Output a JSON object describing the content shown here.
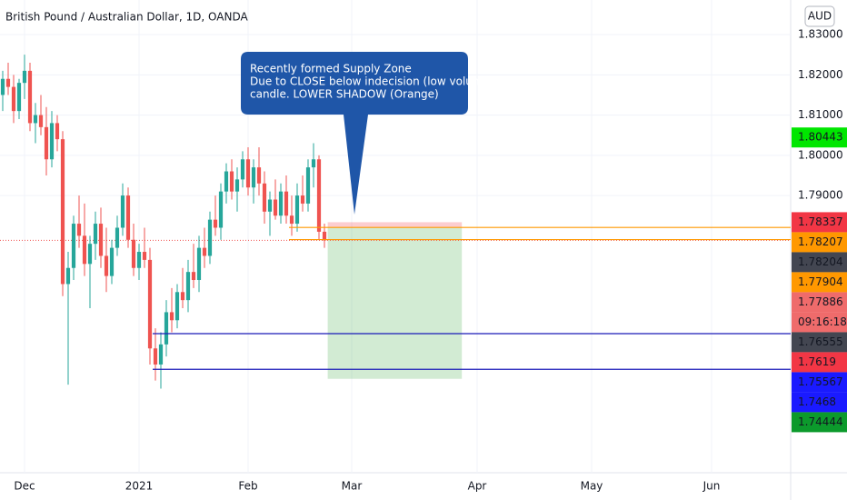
{
  "chart_data": {
    "type": "candlestick",
    "title": "British Pound / Australian Dollar, 1D, OANDA",
    "currency": "AUD",
    "up_color": "#26a69a",
    "down_color": "#ef5350",
    "ylim": [
      1.7211,
      1.8386
    ],
    "yticks": [
      {
        "value": 1.83,
        "label": "1.83000"
      },
      {
        "value": 1.82,
        "label": "1.82000"
      },
      {
        "value": 1.81,
        "label": "1.81000"
      },
      {
        "value": 1.8,
        "label": "1.80000"
      },
      {
        "value": 1.79,
        "label": "1.79000"
      }
    ],
    "xlim": [
      -0.5,
      144.5
    ],
    "xticks": [
      {
        "value": 4,
        "label": "Dec"
      },
      {
        "value": 25,
        "label": "2021"
      },
      {
        "value": 45,
        "label": "Feb"
      },
      {
        "value": 64,
        "label": "Mar"
      },
      {
        "value": 87,
        "label": "Apr"
      },
      {
        "value": 108,
        "label": "May"
      },
      {
        "value": 130,
        "label": "Jun"
      }
    ],
    "grid": true,
    "ohlc": [
      [
        1.815,
        1.821,
        1.811,
        1.819
      ],
      [
        1.819,
        1.823,
        1.815,
        1.817
      ],
      [
        1.817,
        1.82,
        1.808,
        1.811
      ],
      [
        1.811,
        1.819,
        1.809,
        1.818
      ],
      [
        1.818,
        1.825,
        1.814,
        1.821
      ],
      [
        1.821,
        1.823,
        1.806,
        1.808
      ],
      [
        1.808,
        1.813,
        1.803,
        1.81
      ],
      [
        1.81,
        1.815,
        1.805,
        1.807
      ],
      [
        1.807,
        1.812,
        1.795,
        1.799
      ],
      [
        1.799,
        1.811,
        1.797,
        1.808
      ],
      [
        1.808,
        1.81,
        1.801,
        1.804
      ],
      [
        1.804,
        1.806,
        1.765,
        1.768
      ],
      [
        1.768,
        1.776,
        1.743,
        1.772
      ],
      [
        1.772,
        1.785,
        1.769,
        1.783
      ],
      [
        1.783,
        1.79,
        1.777,
        1.78
      ],
      [
        1.78,
        1.788,
        1.77,
        1.773
      ],
      [
        1.773,
        1.78,
        1.762,
        1.778
      ],
      [
        1.778,
        1.786,
        1.774,
        1.783
      ],
      [
        1.783,
        1.787,
        1.772,
        1.775
      ],
      [
        1.775,
        1.782,
        1.766,
        1.77
      ],
      [
        1.77,
        1.779,
        1.768,
        1.777
      ],
      [
        1.777,
        1.785,
        1.775,
        1.782
      ],
      [
        1.782,
        1.793,
        1.78,
        1.79
      ],
      [
        1.79,
        1.792,
        1.777,
        1.779
      ],
      [
        1.779,
        1.783,
        1.77,
        1.772
      ],
      [
        1.772,
        1.778,
        1.769,
        1.776
      ],
      [
        1.776,
        1.782,
        1.772,
        1.774
      ],
      [
        1.774,
        1.777,
        1.748,
        1.752
      ],
      [
        1.752,
        1.757,
        1.744,
        1.748
      ],
      [
        1.748,
        1.756,
        1.742,
        1.753
      ],
      [
        1.753,
        1.764,
        1.75,
        1.761
      ],
      [
        1.761,
        1.767,
        1.756,
        1.759
      ],
      [
        1.759,
        1.768,
        1.757,
        1.766
      ],
      [
        1.766,
        1.772,
        1.762,
        1.764
      ],
      [
        1.764,
        1.774,
        1.761,
        1.771
      ],
      [
        1.771,
        1.778,
        1.767,
        1.769
      ],
      [
        1.769,
        1.78,
        1.766,
        1.777
      ],
      [
        1.777,
        1.782,
        1.772,
        1.775
      ],
      [
        1.775,
        1.786,
        1.773,
        1.784
      ],
      [
        1.784,
        1.79,
        1.78,
        1.782
      ],
      [
        1.782,
        1.793,
        1.779,
        1.791
      ],
      [
        1.791,
        1.798,
        1.788,
        1.796
      ],
      [
        1.796,
        1.799,
        1.789,
        1.791
      ],
      [
        1.791,
        1.797,
        1.786,
        1.794
      ],
      [
        1.794,
        1.801,
        1.792,
        1.799
      ],
      [
        1.799,
        1.802,
        1.79,
        1.792
      ],
      [
        1.792,
        1.799,
        1.788,
        1.797
      ],
      [
        1.797,
        1.802,
        1.79,
        1.793
      ],
      [
        1.793,
        1.796,
        1.783,
        1.786
      ],
      [
        1.786,
        1.791,
        1.78,
        1.789
      ],
      [
        1.789,
        1.794,
        1.784,
        1.785
      ],
      [
        1.785,
        1.793,
        1.783,
        1.791
      ],
      [
        1.791,
        1.795,
        1.783,
        1.785
      ],
      [
        1.785,
        1.79,
        1.78,
        1.783
      ],
      [
        1.783,
        1.793,
        1.781,
        1.79
      ],
      [
        1.79,
        1.795,
        1.786,
        1.788
      ],
      [
        1.788,
        1.799,
        1.786,
        1.797
      ],
      [
        1.797,
        1.803,
        1.792,
        1.799
      ],
      [
        1.799,
        1.8,
        1.779,
        1.781
      ],
      [
        1.781,
        1.783,
        1.777,
        1.77886
      ]
    ],
    "hlines": [
      {
        "value": 1.78207,
        "start": 52.5,
        "color": "#ff9800"
      },
      {
        "value": 1.77904,
        "start": 52.5,
        "color": "#ff9800"
      },
      {
        "value": 1.75567,
        "start": 27.5,
        "color": "#1a1ab8"
      },
      {
        "value": 1.7468,
        "start": 27.5,
        "color": "#1a1ab8"
      }
    ],
    "last_price": 1.77886,
    "position": {
      "entry": 1.78204,
      "stop": 1.78337,
      "target": 1.74444,
      "start": 59.6,
      "end": 84.2
    },
    "price_tags": [
      {
        "value": 1.80443,
        "color": "#00e600"
      },
      {
        "value": 1.78337,
        "color": "#f23645"
      },
      {
        "value": 1.78207,
        "color": "#ff9800"
      },
      {
        "value": 1.78204,
        "color": "#434651"
      },
      {
        "value": 1.77904,
        "color": "#ff9800"
      },
      {
        "value": 1.77886,
        "color": "#ef6b6b"
      },
      {
        "label": "09:16:18",
        "color": "#ef6b6b"
      },
      {
        "value": 1.76555,
        "color": "#434651"
      },
      {
        "value": 1.7619,
        "color": "#f23645"
      },
      {
        "value": 1.75567,
        "color": "#1a1aff"
      },
      {
        "value": 1.7468,
        "color": "#1a1aff"
      },
      {
        "value": 1.74444,
        "color": "#0c9a2c"
      }
    ],
    "annotation": {
      "lines": [
        "Recently formed Supply Zone",
        "Due to CLOSE below indecision (low volume)",
        "candle. LOWER SHADOW (Orange)"
      ],
      "color": "#1f56a8"
    }
  }
}
